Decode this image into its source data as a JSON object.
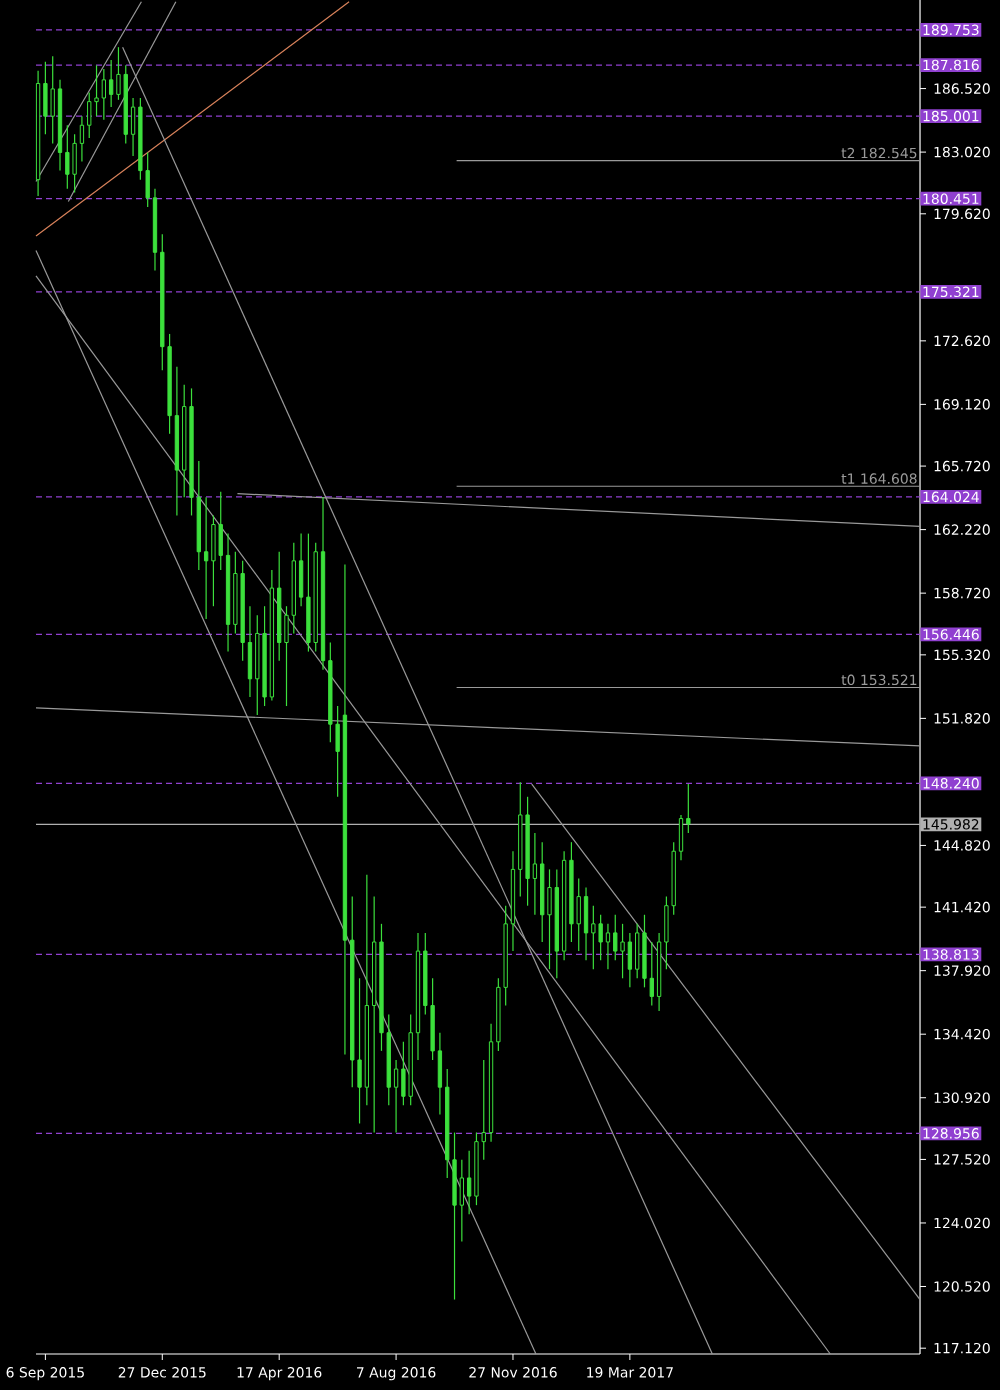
{
  "chart_data": {
    "type": "candlestick",
    "color": "#3ce03c",
    "x": [
      "2015-08-30",
      "2015-09-06",
      "2015-09-13",
      "2015-09-20",
      "2015-09-27",
      "2015-10-04",
      "2015-10-11",
      "2015-10-18",
      "2015-10-25",
      "2015-11-01",
      "2015-11-08",
      "2015-11-15",
      "2015-11-22",
      "2015-11-29",
      "2015-12-06",
      "2015-12-13",
      "2015-12-20",
      "2015-12-27",
      "2016-01-03",
      "2016-01-10",
      "2016-01-17",
      "2016-01-24",
      "2016-01-31",
      "2016-02-07",
      "2016-02-14",
      "2016-02-21",
      "2016-02-28",
      "2016-03-06",
      "2016-03-13",
      "2016-03-20",
      "2016-03-27",
      "2016-04-03",
      "2016-04-10",
      "2016-04-17",
      "2016-04-24",
      "2016-05-01",
      "2016-05-08",
      "2016-05-15",
      "2016-05-22",
      "2016-05-29",
      "2016-06-05",
      "2016-06-12",
      "2016-06-19",
      "2016-06-26",
      "2016-07-03",
      "2016-07-10",
      "2016-07-17",
      "2016-07-24",
      "2016-07-31",
      "2016-08-07",
      "2016-08-14",
      "2016-08-21",
      "2016-08-28",
      "2016-09-04",
      "2016-09-11",
      "2016-09-18",
      "2016-09-25",
      "2016-10-02",
      "2016-10-09",
      "2016-10-16",
      "2016-10-23",
      "2016-10-30",
      "2016-11-06",
      "2016-11-13",
      "2016-11-20",
      "2016-11-27",
      "2016-12-04",
      "2016-12-11",
      "2016-12-18",
      "2016-12-25",
      "2017-01-01",
      "2017-01-08",
      "2017-01-15",
      "2017-01-22",
      "2017-01-29",
      "2017-02-05",
      "2017-02-12",
      "2017-02-19",
      "2017-02-26",
      "2017-03-05",
      "2017-03-12",
      "2017-03-19",
      "2017-03-26",
      "2017-04-02",
      "2017-04-09",
      "2017-04-16",
      "2017-04-23",
      "2017-04-30",
      "2017-05-07",
      "2017-05-14"
    ],
    "ohlc": [
      [
        181.5,
        187.5,
        180.6,
        186.8
      ],
      [
        186.8,
        188.0,
        184.0,
        185.0
      ],
      [
        185.0,
        188.3,
        183.5,
        186.5
      ],
      [
        186.5,
        187.0,
        182.0,
        183.0
      ],
      [
        183.0,
        184.5,
        181.0,
        181.8
      ],
      [
        181.8,
        184.0,
        180.8,
        183.5
      ],
      [
        183.5,
        185.0,
        182.5,
        184.5
      ],
      [
        184.5,
        186.3,
        183.8,
        185.8
      ],
      [
        185.8,
        187.8,
        185.0,
        186.0
      ],
      [
        186.0,
        187.6,
        184.8,
        187.0
      ],
      [
        187.0,
        188.1,
        185.5,
        186.2
      ],
      [
        186.2,
        188.8,
        185.9,
        187.3
      ],
      [
        187.3,
        187.8,
        183.5,
        184.0
      ],
      [
        184.0,
        186.0,
        182.8,
        185.5
      ],
      [
        185.5,
        186.0,
        181.5,
        182.0
      ],
      [
        182.0,
        183.0,
        180.0,
        180.5
      ],
      [
        180.5,
        181.0,
        176.5,
        177.5
      ],
      [
        177.5,
        178.5,
        171.0,
        172.3
      ],
      [
        172.3,
        173.0,
        167.5,
        168.5
      ],
      [
        168.5,
        171.2,
        163.0,
        165.5
      ],
      [
        165.5,
        170.2,
        164.0,
        169.0
      ],
      [
        169.0,
        170.0,
        163.0,
        164.0
      ],
      [
        164.0,
        166.0,
        160.0,
        161.0
      ],
      [
        161.0,
        164.0,
        157.3,
        160.5
      ],
      [
        160.5,
        163.0,
        158.0,
        162.5
      ],
      [
        162.5,
        164.3,
        160.0,
        160.8
      ],
      [
        160.8,
        162.0,
        155.5,
        157.0
      ],
      [
        157.0,
        161.0,
        156.5,
        159.8
      ],
      [
        159.8,
        160.5,
        155.0,
        156.0
      ],
      [
        156.0,
        158.0,
        153.0,
        154.0
      ],
      [
        154.0,
        157.5,
        152.0,
        156.5
      ],
      [
        156.5,
        158.0,
        152.5,
        153.0
      ],
      [
        153.0,
        160.0,
        152.8,
        159.0
      ],
      [
        159.0,
        161.0,
        155.0,
        156.0
      ],
      [
        156.0,
        158.0,
        152.5,
        157.5
      ],
      [
        157.5,
        161.5,
        156.5,
        160.5
      ],
      [
        160.5,
        162.0,
        158.0,
        158.5
      ],
      [
        158.5,
        162.0,
        155.5,
        156.0
      ],
      [
        156.0,
        161.5,
        155.5,
        161.0
      ],
      [
        161.0,
        164.0,
        154.5,
        155.0
      ],
      [
        155.0,
        156.0,
        150.5,
        151.5
      ],
      [
        151.5,
        152.5,
        147.5,
        150.0
      ],
      [
        152.0,
        160.3,
        133.3,
        139.6
      ],
      [
        139.6,
        142.0,
        131.5,
        133.0
      ],
      [
        133.0,
        137.5,
        129.5,
        131.5
      ],
      [
        131.5,
        143.2,
        130.5,
        136.0
      ],
      [
        136.0,
        142.0,
        129.0,
        139.5
      ],
      [
        139.5,
        140.5,
        133.5,
        134.5
      ],
      [
        134.5,
        135.5,
        130.5,
        131.5
      ],
      [
        131.5,
        133.0,
        129.0,
        132.5
      ],
      [
        132.5,
        134.0,
        130.5,
        131.0
      ],
      [
        131.0,
        135.5,
        130.5,
        134.5
      ],
      [
        134.5,
        140.0,
        133.0,
        139.0
      ],
      [
        139.0,
        140.0,
        135.5,
        136.0
      ],
      [
        136.0,
        137.5,
        133.0,
        133.5
      ],
      [
        133.5,
        134.5,
        130.0,
        131.5
      ],
      [
        131.5,
        132.5,
        126.5,
        127.5
      ],
      [
        127.5,
        129.0,
        119.8,
        125.0
      ],
      [
        125.0,
        127.5,
        123.0,
        126.5
      ],
      [
        126.5,
        128.0,
        124.5,
        125.5
      ],
      [
        125.5,
        129.0,
        125.0,
        128.5
      ],
      [
        128.5,
        133.0,
        127.5,
        129.0
      ],
      [
        129.0,
        135.0,
        128.5,
        134.0
      ],
      [
        134.0,
        137.5,
        133.5,
        137.0
      ],
      [
        137.0,
        141.5,
        136.0,
        140.5
      ],
      [
        140.5,
        144.5,
        139.0,
        143.5
      ],
      [
        143.5,
        148.3,
        142.0,
        146.5
      ],
      [
        146.5,
        147.5,
        141.5,
        143.0
      ],
      [
        143.0,
        145.5,
        141.0,
        143.8
      ],
      [
        143.8,
        145.0,
        139.5,
        141.0
      ],
      [
        141.0,
        143.5,
        138.0,
        142.5
      ],
      [
        142.5,
        143.5,
        137.5,
        139.0
      ],
      [
        139.0,
        144.5,
        138.5,
        144.0
      ],
      [
        144.0,
        145.0,
        139.5,
        140.5
      ],
      [
        140.5,
        143.0,
        139.0,
        142.0
      ],
      [
        142.0,
        142.5,
        138.5,
        140.0
      ],
      [
        140.0,
        141.5,
        138.0,
        140.5
      ],
      [
        140.5,
        141.0,
        138.5,
        139.5
      ],
      [
        139.5,
        140.5,
        138.0,
        140.0
      ],
      [
        140.0,
        141.0,
        138.5,
        139.0
      ],
      [
        139.0,
        140.5,
        137.5,
        139.5
      ],
      [
        139.5,
        140.0,
        137.0,
        138.0
      ],
      [
        138.0,
        140.5,
        137.5,
        140.0
      ],
      [
        140.0,
        141.0,
        137.0,
        137.5
      ],
      [
        137.5,
        139.5,
        136.0,
        136.5
      ],
      [
        136.5,
        140.0,
        135.7,
        139.5
      ],
      [
        139.5,
        142.0,
        138.0,
        141.5
      ],
      [
        141.5,
        145.0,
        141.0,
        144.5
      ],
      [
        144.5,
        146.5,
        144.0,
        146.3
      ],
      [
        146.3,
        148.2,
        145.5,
        146.0
      ]
    ],
    "series": [
      {
        "type": "line",
        "color": "#d9825b",
        "x": [
          "2015-08-28",
          "2016-06-23"
        ],
        "values": [
          178.4,
          191.3
        ]
      },
      {
        "type": "line",
        "color": "#9a9a9a",
        "x": [
          "2015-08-28",
          "2015-12-07"
        ],
        "values": [
          181.4,
          191.3
        ]
      },
      {
        "type": "line",
        "color": "#9a9a9a",
        "x": [
          "2015-09-28",
          "2016-01-09"
        ],
        "values": [
          180.3,
          191.3
        ]
      },
      {
        "type": "line",
        "color": "#9a9a9a",
        "x": [
          "2015-11-19",
          "2017-06-06"
        ],
        "values": [
          188.8,
          116.8
        ]
      },
      {
        "type": "line",
        "color": "#9a9a9a",
        "x": [
          "2015-08-28",
          "2016-12-19"
        ],
        "values": [
          177.6,
          116.8
        ]
      },
      {
        "type": "line",
        "color": "#9a9a9a",
        "x": [
          "2015-08-28",
          "2017-09-27"
        ],
        "values": [
          176.2,
          116.8
        ]
      },
      {
        "type": "line",
        "color": "#9a9a9a",
        "x": [
          "2016-12-15",
          "2017-12-22"
        ],
        "values": [
          148.2,
          119.8
        ]
      },
      {
        "type": "line",
        "color": "#9a9a9a",
        "x": [
          "2015-08-28",
          "2017-12-22"
        ],
        "values": [
          152.4,
          150.3
        ]
      },
      {
        "type": "line",
        "color": "#9a9a9a",
        "x": [
          "2016-03-08",
          "2017-12-22"
        ],
        "values": [
          164.2,
          162.4
        ]
      },
      {
        "type": "line",
        "color": "#9a9a9a",
        "name": "t2 182.545",
        "x": [
          "2016-10-04",
          "2017-12-22"
        ],
        "values": [
          182.545,
          182.545
        ]
      },
      {
        "type": "line",
        "color": "#9a9a9a",
        "name": "t1 164.608",
        "x": [
          "2016-10-04",
          "2017-12-22"
        ],
        "values": [
          164.608,
          164.608
        ]
      },
      {
        "type": "line",
        "color": "#9a9a9a",
        "name": "t0 153.521",
        "x": [
          "2016-10-04",
          "2017-12-22"
        ],
        "values": [
          153.521,
          153.521
        ]
      }
    ],
    "ref_lines": [
      {
        "axis": "y",
        "value": 189.753,
        "label": "189.753",
        "color": "#9040d0",
        "line_style": "dashed"
      },
      {
        "axis": "y",
        "value": 187.816,
        "label": "187.816",
        "color": "#9040d0",
        "line_style": "dashed"
      },
      {
        "axis": "y",
        "value": 185.001,
        "label": "185.001",
        "color": "#9040d0",
        "line_style": "dashed"
      },
      {
        "axis": "y",
        "value": 180.451,
        "label": "180.451",
        "color": "#9040d0",
        "line_style": "dashed"
      },
      {
        "axis": "y",
        "value": 175.321,
        "label": "175.321",
        "color": "#9040d0",
        "line_style": "dashed"
      },
      {
        "axis": "y",
        "value": 164.024,
        "label": "164.024",
        "color": "#9040d0",
        "line_style": "dashed"
      },
      {
        "axis": "y",
        "value": 156.446,
        "label": "156.446",
        "color": "#9040d0",
        "line_style": "dashed"
      },
      {
        "axis": "y",
        "value": 148.24,
        "label": "148.240",
        "color": "#9040d0",
        "line_style": "dashed"
      },
      {
        "axis": "y",
        "value": 145.982,
        "label": "145.982",
        "color": "#b0b0b0",
        "line_style": "solid"
      },
      {
        "axis": "y",
        "value": 138.813,
        "label": "138.813",
        "color": "#9040d0",
        "line_style": "dashed"
      },
      {
        "axis": "y",
        "value": 128.956,
        "label": "128.956",
        "color": "#9040d0",
        "line_style": "dashed"
      }
    ],
    "xlim": [
      "2015-08-28",
      "2017-12-22"
    ],
    "ylim": [
      116.8,
      191.4
    ],
    "xticks": [
      {
        "value": "2015-09-06",
        "label": "6 Sep 2015"
      },
      {
        "value": "2015-12-27",
        "label": "27 Dec 2015"
      },
      {
        "value": "2016-04-17",
        "label": "17 Apr 2016"
      },
      {
        "value": "2016-08-07",
        "label": "7 Aug 2016"
      },
      {
        "value": "2016-11-27",
        "label": "27 Nov 2016"
      },
      {
        "value": "2017-03-19",
        "label": "19 Mar 2017"
      }
    ],
    "yticks": [
      {
        "value": 186.52,
        "label": "186.520"
      },
      {
        "value": 183.02,
        "label": "183.020"
      },
      {
        "value": 179.62,
        "label": "179.620"
      },
      {
        "value": 172.62,
        "label": "172.620"
      },
      {
        "value": 169.12,
        "label": "169.120"
      },
      {
        "value": 165.72,
        "label": "165.720"
      },
      {
        "value": 162.22,
        "label": "162.220"
      },
      {
        "value": 158.72,
        "label": "158.720"
      },
      {
        "value": 155.32,
        "label": "155.320"
      },
      {
        "value": 151.82,
        "label": "151.820"
      },
      {
        "value": 144.82,
        "label": "144.820"
      },
      {
        "value": 141.42,
        "label": "141.420"
      },
      {
        "value": 137.92,
        "label": "137.920"
      },
      {
        "value": 134.42,
        "label": "134.420"
      },
      {
        "value": 130.92,
        "label": "130.920"
      },
      {
        "value": 127.52,
        "label": "127.520"
      },
      {
        "value": 124.02,
        "label": "124.020"
      },
      {
        "value": 120.52,
        "label": "120.520"
      },
      {
        "value": 117.12,
        "label": "117.120"
      }
    ]
  }
}
